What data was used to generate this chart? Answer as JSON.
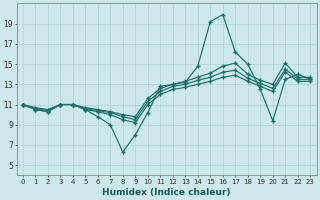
{
  "xlabel": "Humidex (Indice chaleur)",
  "bg_color": "#cce8ec",
  "line_color": "#1f6e6a",
  "xlim": [
    -0.5,
    23.5
  ],
  "ylim": [
    4,
    21
  ],
  "xticks": [
    0,
    1,
    2,
    3,
    4,
    5,
    6,
    7,
    8,
    9,
    10,
    11,
    12,
    13,
    14,
    15,
    16,
    17,
    18,
    19,
    20,
    21,
    22,
    23
  ],
  "yticks": [
    5,
    7,
    9,
    11,
    13,
    15,
    17,
    19
  ],
  "series": [
    [
      11,
      10.5,
      10.3,
      11.0,
      11.0,
      10.5,
      9.8,
      9.0,
      6.3,
      8.0,
      10.2,
      12.8,
      13.0,
      13.2,
      14.8,
      19.2,
      19.9,
      16.2,
      15.0,
      12.5,
      9.4,
      13.5,
      14.0,
      13.5
    ],
    [
      11,
      10.5,
      10.3,
      11.0,
      11.0,
      10.5,
      10.3,
      10.0,
      9.5,
      9.2,
      11.0,
      12.0,
      12.5,
      12.7,
      13.0,
      13.3,
      13.7,
      13.9,
      13.3,
      12.8,
      12.3,
      14.2,
      13.3,
      13.3
    ],
    [
      11,
      10.6,
      10.4,
      11.0,
      11.0,
      10.6,
      10.4,
      10.2,
      9.8,
      9.5,
      11.3,
      12.3,
      12.8,
      13.0,
      13.4,
      13.7,
      14.2,
      14.4,
      13.6,
      13.1,
      12.6,
      14.5,
      13.5,
      13.5
    ],
    [
      11,
      10.7,
      10.5,
      11.0,
      11.0,
      10.7,
      10.5,
      10.3,
      10.0,
      9.8,
      11.6,
      12.6,
      13.0,
      13.3,
      13.7,
      14.1,
      14.8,
      15.1,
      14.0,
      13.4,
      13.0,
      15.1,
      13.7,
      13.7
    ]
  ]
}
